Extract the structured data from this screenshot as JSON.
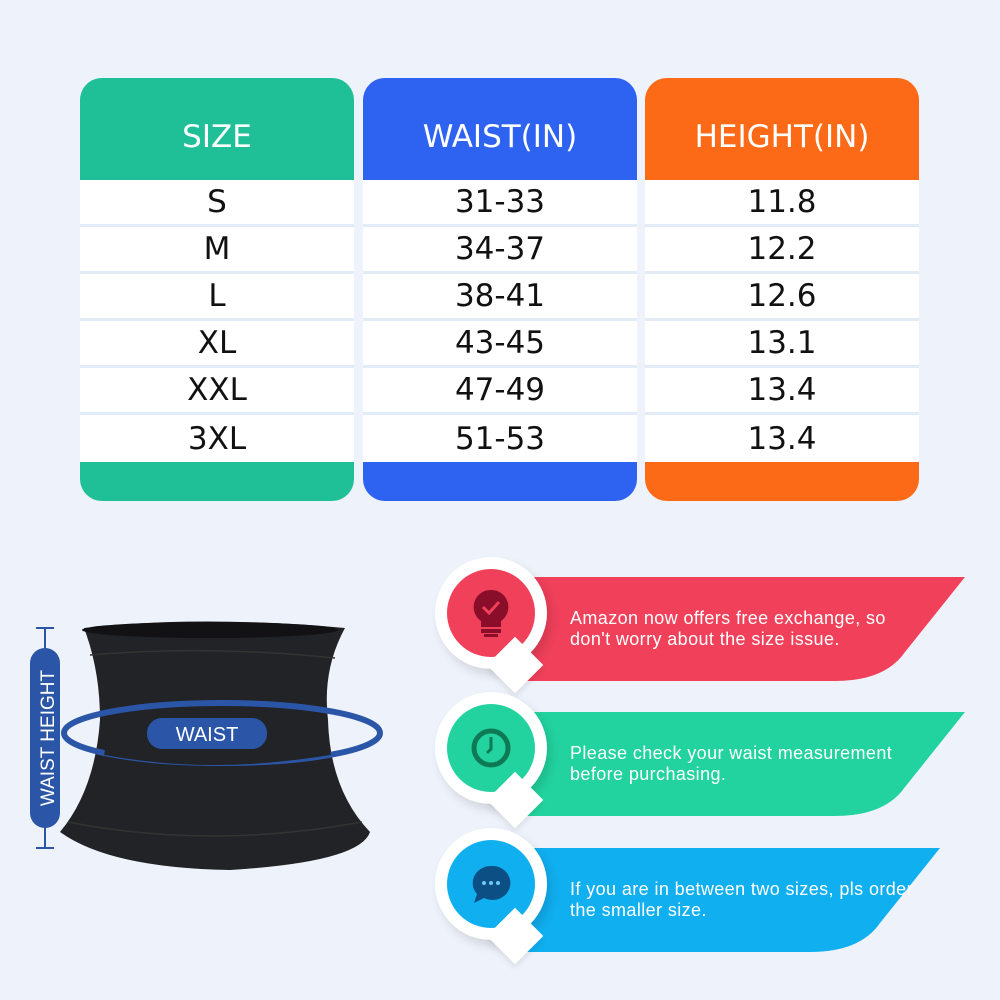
{
  "table": {
    "columns": [
      {
        "header": "SIZE",
        "color": "#1fbf98",
        "values": [
          "S",
          "M",
          "L",
          "XL",
          "XXL",
          "3XL"
        ]
      },
      {
        "header": "WAIST(IN)",
        "color": "#2e63f1",
        "values": [
          "31-33",
          "34-37",
          "38-41",
          "43-45",
          "47-49",
          "51-53"
        ]
      },
      {
        "header": "HEIGHT(IN)",
        "color": "#fd6a17",
        "values": [
          "11.8",
          "12.2",
          "12.6",
          "13.1",
          "13.4",
          "13.4"
        ]
      }
    ]
  },
  "diagram": {
    "waist_label": "WAIST",
    "height_label": "WAIST HEIGHT",
    "accent": "#2b56a8"
  },
  "tips": [
    {
      "icon": "lightbulb-check-icon",
      "text_line1": "Amazon now offers free exchange, so",
      "text_line2": "don't worry about the size issue.",
      "color": "#f0405a",
      "dark": "#8a0e2a"
    },
    {
      "icon": "clock-icon",
      "text_line1": "Please check your waist measurement",
      "text_line2": "before purchasing.",
      "color": "#22d39f",
      "dark": "#0e7a55"
    },
    {
      "icon": "chat-bubble-icon",
      "text_line1": "If you are in between two sizes, pls order",
      "text_line2": "the smaller size.",
      "color": "#10aff0",
      "dark": "#0b4f85"
    }
  ]
}
